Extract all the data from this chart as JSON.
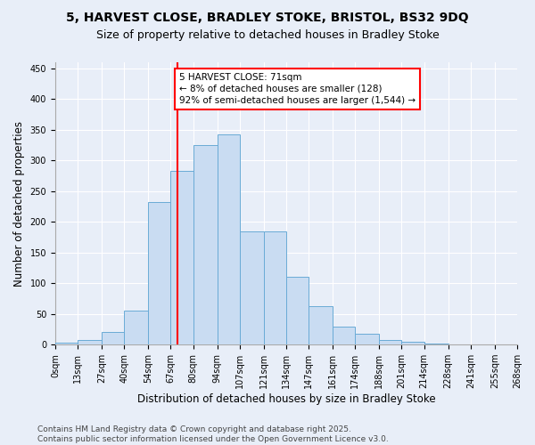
{
  "title": "5, HARVEST CLOSE, BRADLEY STOKE, BRISTOL, BS32 9DQ",
  "subtitle": "Size of property relative to detached houses in Bradley Stoke",
  "xlabel": "Distribution of detached houses by size in Bradley Stoke",
  "ylabel": "Number of detached properties",
  "bin_edges": [
    0,
    13,
    27,
    40,
    54,
    67,
    80,
    94,
    107,
    121,
    134,
    147,
    161,
    174,
    188,
    201,
    214,
    228,
    241,
    255,
    268
  ],
  "bar_heights": [
    3,
    7,
    20,
    55,
    232,
    283,
    325,
    343,
    185,
    185,
    110,
    63,
    30,
    17,
    8,
    5,
    2,
    0,
    0,
    0
  ],
  "bar_color": "#c9dcf2",
  "bar_edge_color": "#6aabd6",
  "vline_x": 71,
  "vline_color": "red",
  "annotation_text": "5 HARVEST CLOSE: 71sqm\n← 8% of detached houses are smaller (128)\n92% of semi-detached houses are larger (1,544) →",
  "annotation_box_color": "red",
  "annotation_text_color": "black",
  "ylim": [
    0,
    460
  ],
  "yticks": [
    0,
    50,
    100,
    150,
    200,
    250,
    300,
    350,
    400,
    450
  ],
  "tick_labels": [
    "0sqm",
    "13sqm",
    "27sqm",
    "40sqm",
    "54sqm",
    "67sqm",
    "80sqm",
    "94sqm",
    "107sqm",
    "121sqm",
    "134sqm",
    "147sqm",
    "161sqm",
    "174sqm",
    "188sqm",
    "201sqm",
    "214sqm",
    "228sqm",
    "241sqm",
    "255sqm",
    "268sqm"
  ],
  "footer_text": "Contains HM Land Registry data © Crown copyright and database right 2025.\nContains public sector information licensed under the Open Government Licence v3.0.",
  "bg_color": "#e8eef8",
  "plot_bg_color": "#e8eef8",
  "grid_color": "#ffffff",
  "title_fontsize": 10,
  "subtitle_fontsize": 9,
  "axis_label_fontsize": 8.5,
  "tick_fontsize": 7,
  "footer_fontsize": 6.5,
  "annotation_fontsize": 7.5
}
